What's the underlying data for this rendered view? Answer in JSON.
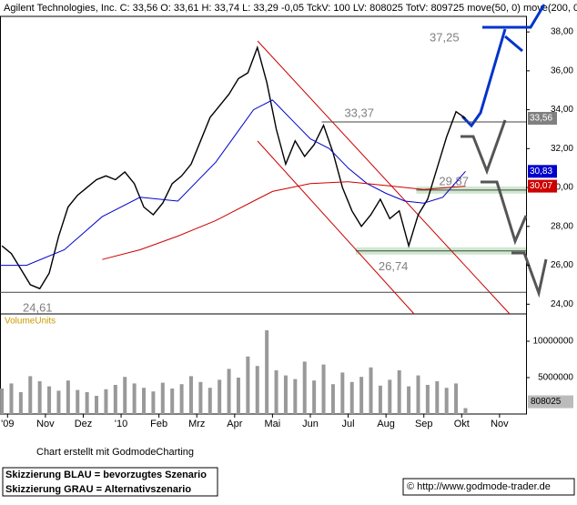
{
  "chart_data": {
    "type": "line",
    "title": "Agilent Technologies, Inc.  C: 33,56  O: 33,61  H: 33,74  L: 33,29  -0,05  TckV: 100  LV: 808025  TotV: 809725  move(50, 0)  move(200, 0)",
    "xlim": [
      -0.2,
      13.7
    ],
    "xticks": [
      {
        "value": 0,
        "label": "'09"
      },
      {
        "value": 1,
        "label": "Nov"
      },
      {
        "value": 2,
        "label": "Dez"
      },
      {
        "value": 3,
        "label": "'10"
      },
      {
        "value": 4,
        "label": "Feb"
      },
      {
        "value": 5,
        "label": "Mrz"
      },
      {
        "value": 6,
        "label": "Apr"
      },
      {
        "value": 7,
        "label": "Mai"
      },
      {
        "value": 8,
        "label": "Jun"
      },
      {
        "value": 9,
        "label": "Jul"
      },
      {
        "value": 10,
        "label": "Aug"
      },
      {
        "value": 11,
        "label": "Sep"
      },
      {
        "value": 12,
        "label": "Okt"
      },
      {
        "value": 13,
        "label": "Nov"
      }
    ],
    "ylim": [
      23.5,
      38.8
    ],
    "yticks": [
      {
        "value": 24,
        "label": "24,00"
      },
      {
        "value": 26,
        "label": "26,00"
      },
      {
        "value": 28,
        "label": "28,00"
      },
      {
        "value": 30,
        "label": "30,00"
      },
      {
        "value": 32,
        "label": "32,00"
      },
      {
        "value": 34,
        "label": "34,00"
      },
      {
        "value": 36,
        "label": "36,00"
      },
      {
        "value": 38,
        "label": "38,00"
      }
    ],
    "series": [
      {
        "name": "Close",
        "color": "#000000",
        "x": [
          -0.15,
          0.1,
          0.35,
          0.6,
          0.85,
          1.1,
          1.35,
          1.6,
          1.85,
          2.1,
          2.35,
          2.6,
          2.85,
          3.1,
          3.35,
          3.6,
          3.85,
          4.1,
          4.35,
          4.6,
          4.85,
          5.1,
          5.35,
          5.6,
          5.85,
          6.1,
          6.35,
          6.6,
          6.85,
          7.1,
          7.35,
          7.6,
          7.85,
          8.1,
          8.35,
          8.6,
          8.85,
          9.1,
          9.35,
          9.6,
          9.85,
          10.1,
          10.35,
          10.6,
          10.85,
          11.1,
          11.35,
          11.6,
          11.85,
          12.1
        ],
        "values": [
          27.0,
          26.6,
          25.8,
          25.0,
          24.8,
          25.6,
          27.5,
          29.0,
          29.6,
          30.0,
          30.4,
          30.6,
          30.4,
          30.8,
          30.2,
          29.0,
          28.6,
          29.2,
          30.2,
          30.6,
          31.2,
          32.4,
          33.6,
          34.2,
          34.8,
          35.6,
          35.9,
          37.2,
          35.4,
          33.0,
          31.2,
          32.4,
          31.6,
          32.2,
          33.2,
          31.8,
          30.0,
          28.8,
          28.0,
          28.6,
          29.4,
          28.4,
          28.8,
          27.0,
          28.6,
          29.4,
          31.0,
          32.6,
          33.9,
          33.56
        ],
        "last_label": "33,56",
        "label_color": "#808080"
      },
      {
        "name": "move(50, 0)",
        "color": "#0000cc",
        "x": [
          -0.2,
          0.5,
          1.5,
          2.5,
          3.5,
          4.5,
          5.5,
          6.5,
          7,
          7.5,
          8,
          8.5,
          9,
          9.5,
          10,
          10.5,
          11,
          11.5,
          12.1
        ],
        "values": [
          26.0,
          26.0,
          26.8,
          28.5,
          29.5,
          29.3,
          31.3,
          34.0,
          34.5,
          33.5,
          32.5,
          32.0,
          31.0,
          30.2,
          29.7,
          29.3,
          29.2,
          29.5,
          30.83
        ],
        "last_label": "30,83",
        "label_color": "#0000cc"
      },
      {
        "name": "move(200, 0)",
        "color": "#cc0000",
        "x": [
          2.5,
          3.5,
          4.5,
          5.5,
          6.5,
          7,
          8,
          9,
          10,
          11,
          12.1
        ],
        "values": [
          26.3,
          26.8,
          27.5,
          28.3,
          29.3,
          29.8,
          30.2,
          30.3,
          30.1,
          29.9,
          30.07
        ],
        "last_label": "30,07",
        "label_color": "#cc0000"
      }
    ],
    "levels": [
      {
        "value": 37.25,
        "label": "37,25",
        "from": 5.5,
        "line": false
      },
      {
        "value": 33.37,
        "label": "33,37",
        "from": 8.3,
        "line": true
      },
      {
        "value": 29.87,
        "label": "29,87",
        "from": 10.8,
        "line": true,
        "band": true
      },
      {
        "value": 26.74,
        "label": "26,74",
        "from": 9.2,
        "line": true,
        "band": true
      },
      {
        "value": 24.61,
        "label": "24,61",
        "from": -0.2,
        "line": true
      }
    ],
    "volume": {
      "label": "VolumeUnits",
      "color": "#999999",
      "ylim": [
        0,
        13750000
      ],
      "yticks": [
        5000000,
        10000000
      ],
      "values": [
        3500000,
        4200000,
        3000000,
        5200000,
        4500000,
        3800000,
        3200000,
        4600000,
        3300000,
        3000000,
        2500000,
        3400000,
        4000000,
        5100000,
        4200000,
        3600000,
        3100000,
        4300000,
        3500000,
        4100000,
        5200000,
        4400000,
        3600000,
        4700000,
        6200000,
        5000000,
        7900000,
        6600000,
        11500000,
        6000000,
        5300000,
        4800000,
        7200000,
        4600000,
        6800000,
        4100000,
        5700000,
        4400000,
        5100000,
        6400000,
        3900000,
        4700000,
        6000000,
        3800000,
        5300000,
        4000000,
        4500000,
        3600000,
        4200000,
        808025
      ]
    },
    "credit": "Chart erstellt mit GodmodeCharting",
    "notes": [
      "Skizzierung BLAU = bevorzugtes Szenario",
      "Skizzierung GRAU = Alternativszenario"
    ],
    "copyright": "© http://www.godmode-trader.de"
  }
}
